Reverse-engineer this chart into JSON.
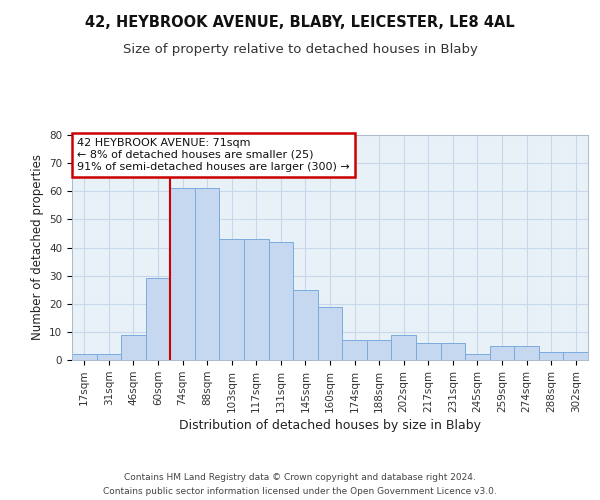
{
  "title1": "42, HEYBROOK AVENUE, BLABY, LEICESTER, LE8 4AL",
  "title2": "Size of property relative to detached houses in Blaby",
  "xlabel": "Distribution of detached houses by size in Blaby",
  "ylabel": "Number of detached properties",
  "bar_labels": [
    "17sqm",
    "31sqm",
    "46sqm",
    "60sqm",
    "74sqm",
    "88sqm",
    "103sqm",
    "117sqm",
    "131sqm",
    "145sqm",
    "160sqm",
    "174sqm",
    "188sqm",
    "202sqm",
    "217sqm",
    "231sqm",
    "245sqm",
    "259sqm",
    "274sqm",
    "288sqm",
    "302sqm"
  ],
  "bar_values": [
    2,
    2,
    9,
    29,
    61,
    61,
    43,
    43,
    42,
    25,
    19,
    7,
    7,
    9,
    6,
    6,
    2,
    5,
    5,
    3,
    3
  ],
  "bar_color": "#c5d8f0",
  "bar_edge_color": "#7aaadd",
  "red_line_index": 4,
  "annotation_line1": "42 HEYBROOK AVENUE: 71sqm",
  "annotation_line2": "← 8% of detached houses are smaller (25)",
  "annotation_line3": "91% of semi-detached houses are larger (300) →",
  "annotation_box_color": "white",
  "annotation_box_edge_color": "#cc0000",
  "red_line_color": "#cc0000",
  "ylim": [
    0,
    80
  ],
  "yticks": [
    0,
    10,
    20,
    30,
    40,
    50,
    60,
    70,
    80
  ],
  "grid_color": "#c8d8eb",
  "bg_color": "#e8f0f8",
  "footer1": "Contains HM Land Registry data © Crown copyright and database right 2024.",
  "footer2": "Contains public sector information licensed under the Open Government Licence v3.0.",
  "title1_fontsize": 10.5,
  "title2_fontsize": 9.5,
  "xlabel_fontsize": 9,
  "ylabel_fontsize": 8.5,
  "tick_fontsize": 7.5,
  "annotation_fontsize": 8
}
